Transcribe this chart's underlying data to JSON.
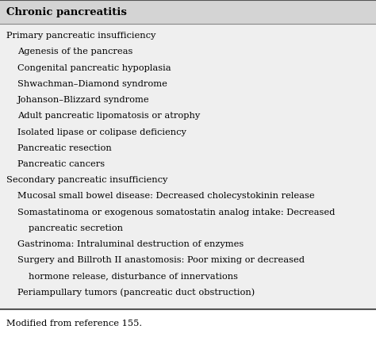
{
  "title": "Chronic pancreatitis",
  "header_bg": "#d4d4d4",
  "table_bg": "#efefef",
  "footer_text": "Modified from reference 155.",
  "title_fontsize": 9.5,
  "body_fontsize": 8.2,
  "footer_fontsize": 8.2,
  "rows": [
    {
      "text": "Primary pancreatic insufficiency",
      "indent": 0
    },
    {
      "text": "Agenesis of the pancreas",
      "indent": 1
    },
    {
      "text": "Congenital pancreatic hypoplasia",
      "indent": 1
    },
    {
      "text": "Shwachman–Diamond syndrome",
      "indent": 1
    },
    {
      "text": "Johanson–Blizzard syndrome",
      "indent": 1
    },
    {
      "text": "Adult pancreatic lipomatosis or atrophy",
      "indent": 1
    },
    {
      "text": "Isolated lipase or colipase deficiency",
      "indent": 1
    },
    {
      "text": "Pancreatic resection",
      "indent": 1
    },
    {
      "text": "Pancreatic cancers",
      "indent": 1
    },
    {
      "text": "Secondary pancreatic insufficiency",
      "indent": 0
    },
    {
      "text": "Mucosal small bowel disease: Decreased cholecystokinin release",
      "indent": 1
    },
    {
      "text": "Somastatinoma or exogenous somatostatin analog intake: Decreased",
      "indent": 1
    },
    {
      "text": "pancreatic secretion",
      "indent": 1,
      "continuation": true
    },
    {
      "text": "Gastrinoma: Intraluminal destruction of enzymes",
      "indent": 1
    },
    {
      "text": "Surgery and Billroth II anastomosis: Poor mixing or decreased",
      "indent": 1
    },
    {
      "text": "hormone release, disturbance of innervations",
      "indent": 1,
      "continuation": true
    },
    {
      "text": "Periampullary tumors (pancreatic duct obstruction)",
      "indent": 1
    }
  ]
}
